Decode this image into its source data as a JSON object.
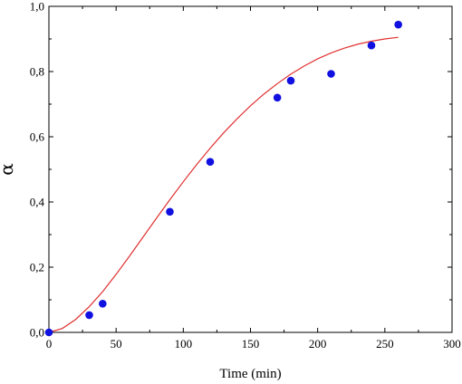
{
  "chart_data": {
    "type": "scatter",
    "title": "",
    "xlabel": "Time (min)",
    "ylabel": "α",
    "xlim": [
      0,
      300
    ],
    "ylim": [
      0,
      1.0
    ],
    "x_ticks": [
      0,
      50,
      100,
      150,
      200,
      250,
      300
    ],
    "y_ticks": [
      0.0,
      0.2,
      0.4,
      0.6,
      0.8,
      1.0
    ],
    "y_tick_labels": [
      "0,0",
      "0,2",
      "0,4",
      "0,6",
      "0,8",
      "1,0"
    ],
    "grid": false,
    "legend": "none",
    "series": [
      {
        "kind": "scatter",
        "color": "#1010e0",
        "x": [
          0,
          30,
          40,
          90,
          120,
          170,
          180,
          210,
          240,
          260
        ],
        "y": [
          0.0,
          0.053,
          0.088,
          0.37,
          0.523,
          0.72,
          0.772,
          0.793,
          0.88,
          0.944
        ]
      },
      {
        "kind": "line",
        "color": "#e03030",
        "x": [
          0,
          10,
          20,
          30,
          40,
          50,
          60,
          70,
          80,
          90,
          100,
          110,
          120,
          130,
          140,
          150,
          160,
          170,
          180,
          190,
          200,
          210,
          220,
          230,
          240,
          250,
          260
        ],
        "y": [
          0.0,
          0.012,
          0.04,
          0.079,
          0.125,
          0.178,
          0.234,
          0.292,
          0.35,
          0.407,
          0.462,
          0.515,
          0.565,
          0.612,
          0.655,
          0.695,
          0.731,
          0.763,
          0.792,
          0.817,
          0.839,
          0.857,
          0.872,
          0.884,
          0.893,
          0.9,
          0.905
        ]
      }
    ]
  }
}
